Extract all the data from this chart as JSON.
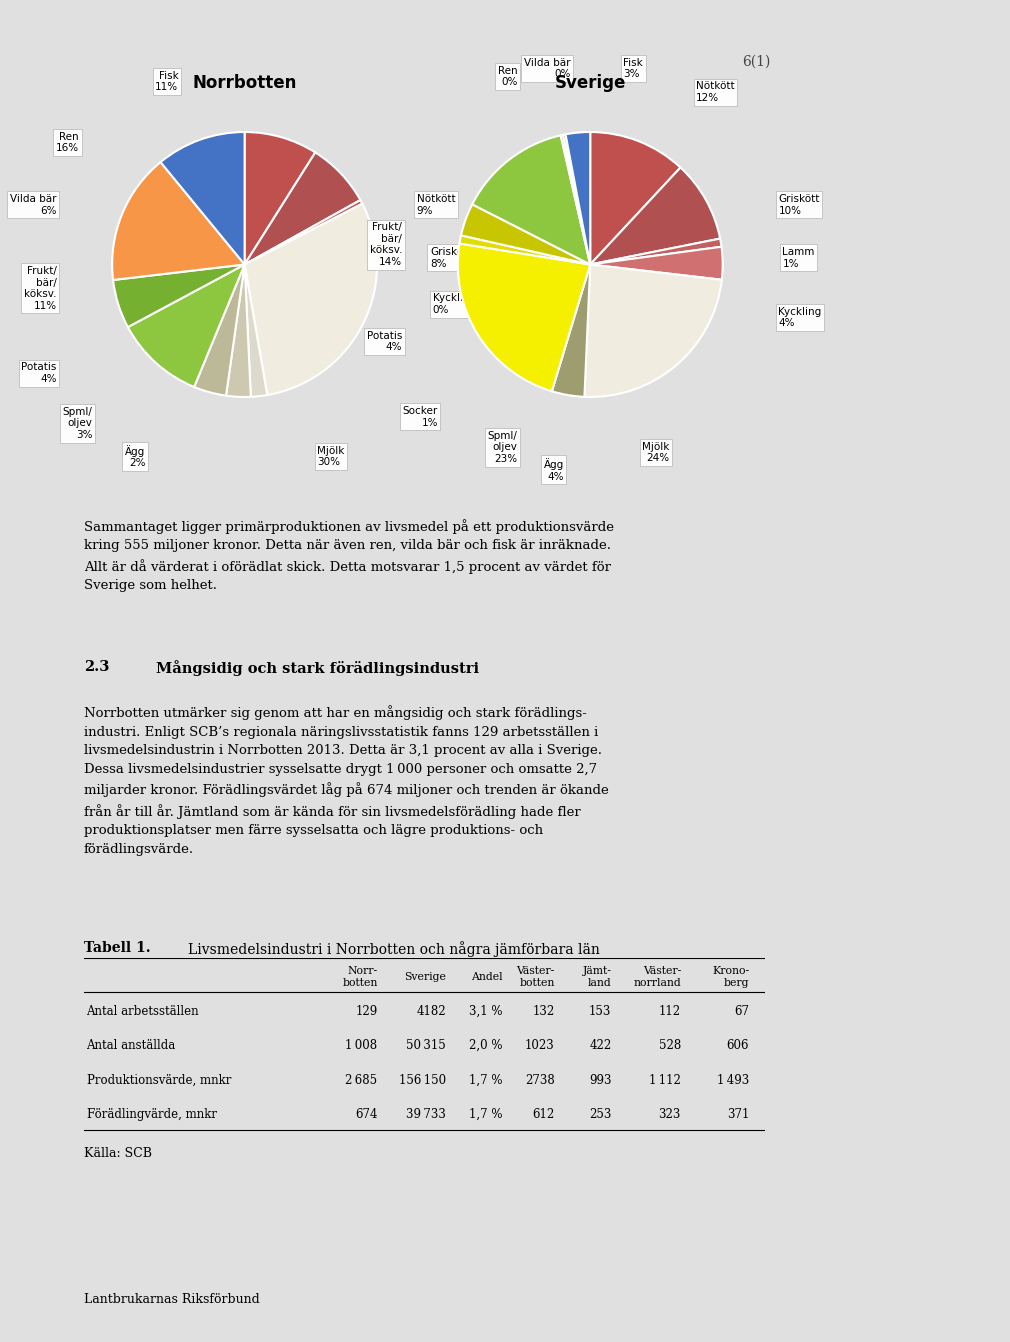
{
  "page_number": "6(1)",
  "chart1_title": "Norrbotten",
  "chart2_title": "Sverige",
  "norrbotten_values": [
    9,
    8,
    0.5,
    30,
    2,
    3,
    4,
    11,
    6,
    16,
    11
  ],
  "norrbotten_colors": [
    "#c0504d",
    "#b05050",
    "#c86060",
    "#f0ede0",
    "#dddacc",
    "#ccc9b0",
    "#bcb998",
    "#8dc63f",
    "#76b030",
    "#f79646",
    "#4472c4"
  ],
  "norrbotten_label_texts": [
    "Nötkött\n9%",
    "Griskött\n8%",
    "Kyckling\n0%",
    "Mjölk\n30%",
    "Ägg\n2%",
    "Spml/\noljev\n3%",
    "Potatis\n4%",
    "Frukt/\nbär/\nköksv.\n11%",
    "Vilda bär\n6%",
    "Ren\n16%",
    "Fisk\n11%"
  ],
  "norrbotten_label_pos": [
    [
      1.3,
      0.45,
      "left"
    ],
    [
      1.4,
      0.05,
      "left"
    ],
    [
      1.42,
      -0.3,
      "left"
    ],
    [
      0.55,
      -1.45,
      "left"
    ],
    [
      -0.75,
      -1.45,
      "right"
    ],
    [
      -1.15,
      -1.2,
      "right"
    ],
    [
      -1.42,
      -0.82,
      "right"
    ],
    [
      -1.42,
      -0.18,
      "right"
    ],
    [
      -1.42,
      0.45,
      "right"
    ],
    [
      -1.25,
      0.92,
      "right"
    ],
    [
      -0.5,
      1.38,
      "right"
    ]
  ],
  "sverige_values": [
    12,
    10,
    1,
    4,
    24,
    4,
    23,
    1,
    4,
    14,
    0.3,
    0.3,
    3
  ],
  "sverige_colors": [
    "#c0504d",
    "#b05050",
    "#c06060",
    "#d07070",
    "#f0ede0",
    "#9e9d70",
    "#f5f000",
    "#e0de00",
    "#c8c600",
    "#8dc63f",
    "#f79646",
    "#76b030",
    "#4472c4"
  ],
  "sverige_label_texts": [
    "Nötkött\n12%",
    "Griskött\n10%",
    "Lamm\n1%",
    "Kyckling\n4%",
    "Mjölk\n24%",
    "Ägg\n4%",
    "Spml/\noljev\n23%",
    "Socker\n1%",
    "Potatis\n4%",
    "Frukt/\nbär/\nköksv.\n14%",
    "Ren\n0%",
    "Vilda bär\n0%",
    "Fisk\n3%"
  ],
  "sverige_label_pos": [
    [
      0.8,
      1.3,
      "left"
    ],
    [
      1.42,
      0.45,
      "left"
    ],
    [
      1.45,
      0.05,
      "left"
    ],
    [
      1.42,
      -0.4,
      "left"
    ],
    [
      0.6,
      -1.42,
      "right"
    ],
    [
      -0.2,
      -1.55,
      "right"
    ],
    [
      -0.55,
      -1.38,
      "right"
    ],
    [
      -1.15,
      -1.15,
      "right"
    ],
    [
      -1.42,
      -0.58,
      "right"
    ],
    [
      -1.42,
      0.15,
      "right"
    ],
    [
      -0.55,
      1.42,
      "right"
    ],
    [
      -0.15,
      1.48,
      "right"
    ],
    [
      0.25,
      1.48,
      "left"
    ]
  ],
  "body_text": "Sammantaget ligger primärproduktionen av livsmedel på ett produktionsvärde\nkring 555 miljoner kronor. Detta när även ren, vilda bär och fisk är inräknade.\nAllt är då värderat i oförädlat skick. Detta motsvarar 1,5 procent av värdet för\nSverige som helhet.",
  "section_num": "2.3",
  "section_heading": "Mångsidig och stark förädlingsindustri",
  "section_body": "Norrbotten utmärker sig genom att har en mångsidig och stark förädlings-\nindustri. Enligt SCB’s regionala näringslivsstatistik fanns 129 arbetsställen i\nlivsmedelsindustrin i Norrbotten 2013. Detta är 3,1 procent av alla i Sverige.\nDessa livsmedelsindustrier sysselsatte drygt 1 000 personer och omsatte 2,7\nmiljarder kronor. Förädlingsvärdet låg på 674 miljoner och trenden är ökande\nfrån år till år. Jämtland som är kända för sin livsmedelsförädling hade fler\nproduktionsplatser men färre sysselsatta och lägre produktions- och\nförädlingsvärde.",
  "table_bold": "Tabell 1.",
  "table_heading": "Livsmedelsindustri i Norrbotten och några jämförbara län",
  "col_headers": [
    "",
    "Norr-\nbotten",
    "Sverige",
    "Andel",
    "Väster-\nbotten",
    "Jämt-\nland",
    "Väster-\nnorrland",
    "Krono-\nberg"
  ],
  "table_rows": [
    [
      "Antal arbetsställen",
      "129",
      "4182",
      "3,1 %",
      "132",
      "153",
      "112",
      "67"
    ],
    [
      "Antal anställda",
      "1 008",
      "50 315",
      "2,0 %",
      "1023",
      "422",
      "528",
      "606"
    ],
    [
      "Produktionsvärde, mnkr",
      "2 685",
      "156 150",
      "1,7 %",
      "2738",
      "993",
      "1 112",
      "1 493"
    ],
    [
      "Förädlingvärde, mnkr",
      "674",
      "39 733",
      "1,7 %",
      "612",
      "253",
      "323",
      "371"
    ]
  ],
  "table_footer": "Källa: SCB",
  "page_footer": "Lantbrukarnas Riksförbund",
  "bg_color": "#e0e0e0",
  "content_bg": "#ffffff"
}
